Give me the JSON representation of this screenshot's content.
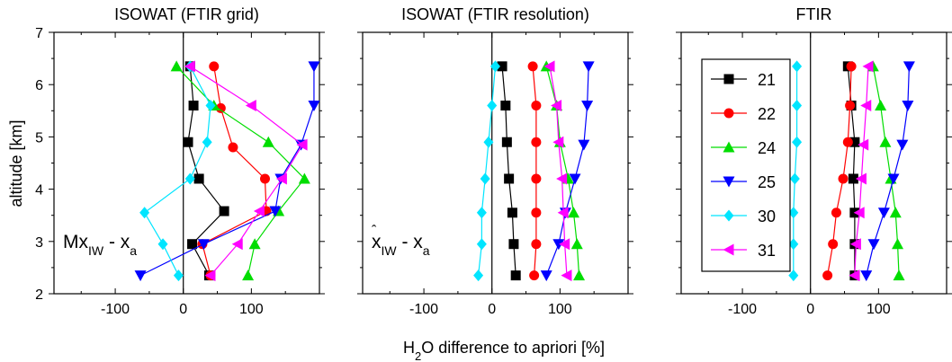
{
  "figure": {
    "xlabel_main": "H",
    "xlabel_sub": "2",
    "xlabel_rest": "O difference to apriori [%]",
    "ylabel": "altitude [km]"
  },
  "chart_data": [
    {
      "type": "scatter",
      "title": "ISOWAT (FTIR grid)",
      "annotation": {
        "main": "Mx",
        "sub": "IW",
        "rest": " - x",
        "sub2": "a"
      },
      "xlim": [
        -190,
        200
      ],
      "ylim": [
        2,
        7
      ],
      "xticks": [
        "-100",
        "0",
        "100"
      ],
      "yticks": [
        "2",
        "3",
        "4",
        "5",
        "6",
        "7"
      ],
      "series": [
        {
          "name": "21",
          "color": "#000000",
          "marker": "square",
          "x": [
            38,
            13,
            60,
            23,
            7,
            15,
            10
          ],
          "y": [
            2.35,
            2.95,
            3.58,
            4.2,
            4.9,
            5.6,
            6.35
          ]
        },
        {
          "name": "22",
          "color": "#ff0000",
          "marker": "circle",
          "x": [
            40,
            28,
            122,
            120,
            73,
            55,
            45
          ],
          "y": [
            2.35,
            2.95,
            3.58,
            4.2,
            4.8,
            5.55,
            6.35
          ]
        },
        {
          "name": "24",
          "color": "#00dd00",
          "marker": "triangle-up",
          "x": [
            95,
            105,
            140,
            178,
            125,
            45,
            -10
          ],
          "y": [
            2.35,
            2.95,
            3.58,
            4.2,
            4.9,
            5.6,
            6.35
          ]
        },
        {
          "name": "25",
          "color": "#0000ff",
          "marker": "triangle-down",
          "x": [
            -63,
            30,
            135,
            143,
            173,
            192,
            192
          ],
          "y": [
            2.35,
            2.95,
            3.58,
            4.2,
            4.85,
            5.6,
            6.35
          ]
        },
        {
          "name": "30",
          "color": "#00e5ff",
          "marker": "diamond",
          "x": [
            -7,
            -30,
            -57,
            10,
            35,
            40,
            10
          ],
          "y": [
            2.35,
            2.95,
            3.55,
            4.2,
            4.9,
            5.6,
            6.35
          ]
        },
        {
          "name": "31",
          "color": "#ff00ff",
          "marker": "triangle-left",
          "x": [
            40,
            80,
            112,
            145,
            175,
            100,
            10
          ],
          "y": [
            2.35,
            2.95,
            3.58,
            4.2,
            4.85,
            5.6,
            6.35
          ]
        }
      ]
    },
    {
      "type": "scatter",
      "title": "ISOWAT (FTIR resolution)",
      "annotation": {
        "main": "x",
        "sub": "IW",
        "rest": " - x",
        "sub2": "a"
      },
      "xlim": [
        -190,
        200
      ],
      "ylim": [
        2,
        7
      ],
      "xticks": [
        "-100",
        "0",
        "100"
      ],
      "yticks": [],
      "series": [
        {
          "name": "21",
          "color": "#000000",
          "marker": "square",
          "x": [
            35,
            32,
            30,
            25,
            22,
            20,
            15
          ],
          "y": [
            2.35,
            2.95,
            3.55,
            4.2,
            4.9,
            5.6,
            6.35
          ]
        },
        {
          "name": "22",
          "color": "#ff0000",
          "marker": "circle",
          "x": [
            62,
            65,
            65,
            65,
            65,
            65,
            60
          ],
          "y": [
            2.35,
            2.95,
            3.55,
            4.2,
            4.9,
            5.6,
            6.35
          ]
        },
        {
          "name": "24",
          "color": "#00dd00",
          "marker": "triangle-up",
          "x": [
            128,
            125,
            120,
            112,
            100,
            95,
            80
          ],
          "y": [
            2.35,
            2.95,
            3.55,
            4.2,
            4.9,
            5.6,
            6.35
          ]
        },
        {
          "name": "25",
          "color": "#0000ff",
          "marker": "triangle-down",
          "x": [
            80,
            98,
            108,
            122,
            135,
            140,
            142
          ],
          "y": [
            2.35,
            2.95,
            3.55,
            4.2,
            4.85,
            5.6,
            6.35
          ]
        },
        {
          "name": "30",
          "color": "#00e5ff",
          "marker": "diamond",
          "x": [
            -20,
            -15,
            -15,
            -10,
            -5,
            0,
            5
          ],
          "y": [
            2.35,
            2.95,
            3.55,
            4.2,
            4.9,
            5.6,
            6.35
          ]
        },
        {
          "name": "31",
          "color": "#ff00ff",
          "marker": "triangle-left",
          "x": [
            110,
            107,
            105,
            103,
            98,
            95,
            85
          ],
          "y": [
            2.35,
            2.95,
            3.55,
            4.2,
            4.9,
            5.6,
            6.35
          ]
        }
      ]
    },
    {
      "type": "scatter",
      "title": "FTIR",
      "xlim": [
        -190,
        200
      ],
      "ylim": [
        2,
        7
      ],
      "xticks": [
        "-100",
        "0",
        "100"
      ],
      "yticks": [],
      "legend_position": "left",
      "series": [
        {
          "name": "21",
          "color": "#000000",
          "marker": "square",
          "x": [
            65,
            65,
            65,
            63,
            65,
            60,
            55
          ],
          "y": [
            2.35,
            2.95,
            3.55,
            4.2,
            4.9,
            5.6,
            6.35
          ]
        },
        {
          "name": "22",
          "color": "#ff0000",
          "marker": "circle",
          "x": [
            25,
            33,
            38,
            48,
            55,
            58,
            60
          ],
          "y": [
            2.35,
            2.95,
            3.55,
            4.2,
            4.9,
            5.6,
            6.35
          ]
        },
        {
          "name": "24",
          "color": "#00dd00",
          "marker": "triangle-up",
          "x": [
            130,
            128,
            125,
            118,
            110,
            103,
            92
          ],
          "y": [
            2.35,
            2.95,
            3.55,
            4.2,
            4.9,
            5.6,
            6.35
          ]
        },
        {
          "name": "25",
          "color": "#0000ff",
          "marker": "triangle-down",
          "x": [
            82,
            93,
            108,
            122,
            135,
            143,
            145
          ],
          "y": [
            2.35,
            2.95,
            3.55,
            4.2,
            4.85,
            5.6,
            6.35
          ]
        },
        {
          "name": "30",
          "color": "#00e5ff",
          "marker": "diamond",
          "x": [
            -25,
            -25,
            -25,
            -23,
            -20,
            -20,
            -20
          ],
          "y": [
            2.35,
            2.95,
            3.55,
            4.2,
            4.9,
            5.6,
            6.35
          ]
        },
        {
          "name": "31",
          "color": "#ff00ff",
          "marker": "triangle-left",
          "x": [
            65,
            67,
            72,
            75,
            78,
            82,
            85
          ],
          "y": [
            2.35,
            2.95,
            3.55,
            4.2,
            4.85,
            5.6,
            6.35
          ]
        }
      ]
    }
  ]
}
